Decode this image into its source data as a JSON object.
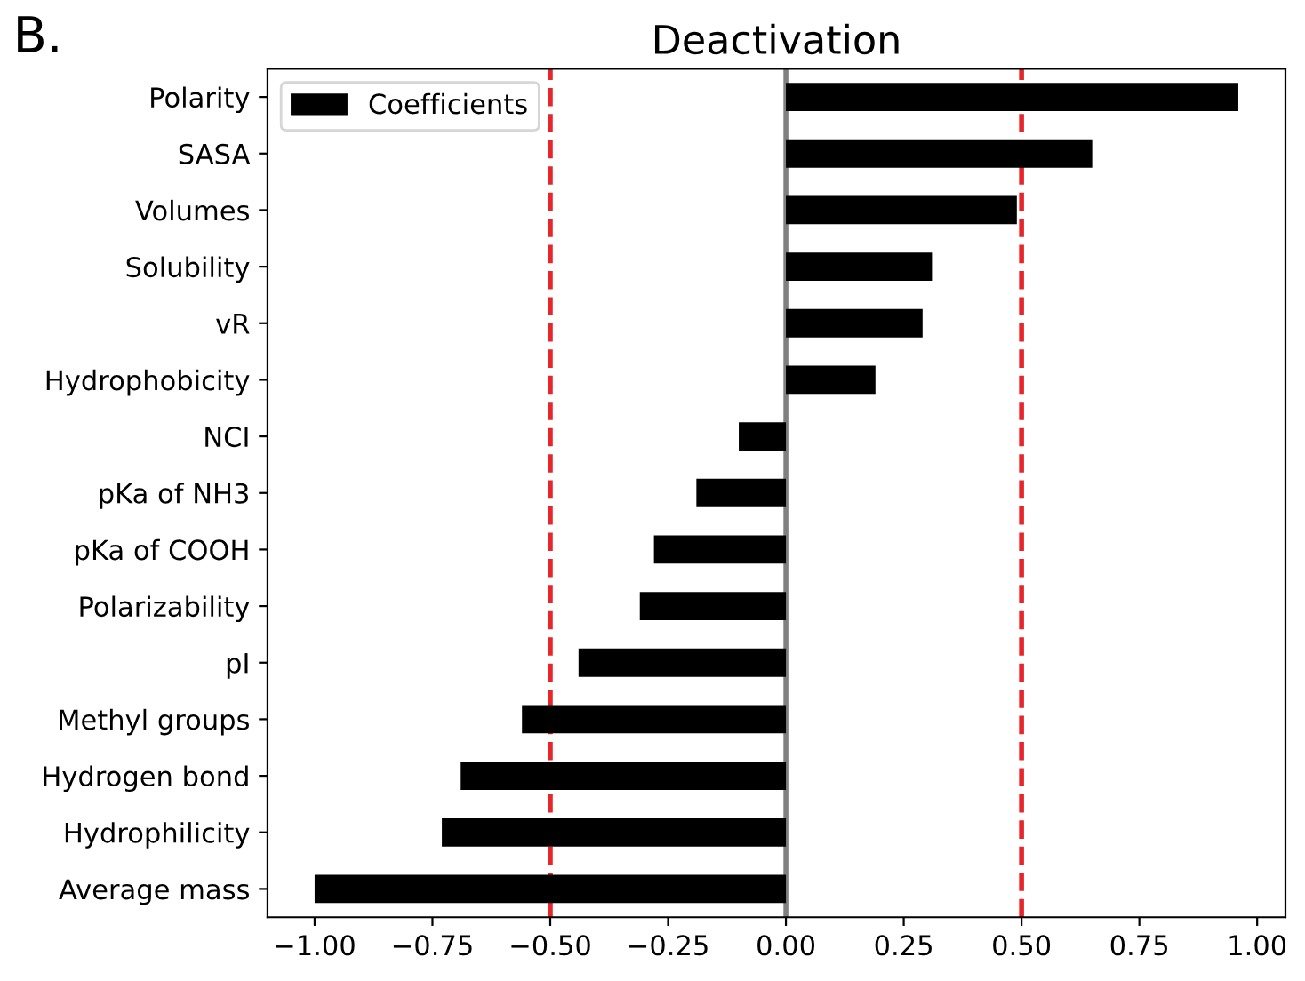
{
  "chart_data": {
    "type": "bar",
    "orientation": "horizontal",
    "title": "Deactivation",
    "annotations": [
      "B."
    ],
    "categories": [
      "Polarity",
      "SASA",
      "Volumes",
      "Solubility",
      "vR",
      "Hydrophobicity",
      "NCI",
      "pKa of NH3",
      "pKa of COOH",
      "Polarizability",
      "pI",
      "Methyl groups",
      "Hydrogen bond",
      "Hydrophilicity",
      "Average mass"
    ],
    "series": [
      {
        "name": "Coefficients",
        "color": "#000000",
        "values": [
          0.96,
          0.65,
          0.49,
          0.31,
          0.29,
          0.19,
          -0.1,
          -0.19,
          -0.28,
          -0.31,
          -0.44,
          -0.56,
          -0.69,
          -0.73,
          -1.0
        ]
      }
    ],
    "xlim": [
      -1.1,
      1.06
    ],
    "xticks": [
      {
        "value": -1.0,
        "label": "−1.00"
      },
      {
        "value": -0.75,
        "label": "−0.75"
      },
      {
        "value": -0.5,
        "label": "−0.50"
      },
      {
        "value": -0.25,
        "label": "−0.25"
      },
      {
        "value": 0.0,
        "label": "0.00"
      },
      {
        "value": 0.25,
        "label": "0.25"
      },
      {
        "value": 0.5,
        "label": "0.50"
      },
      {
        "value": 0.75,
        "label": "0.75"
      },
      {
        "value": 1.0,
        "label": "1.00"
      }
    ],
    "ref_lines": [
      {
        "axis": "x",
        "value": 0.0,
        "color": "#808080",
        "line_style": "solid"
      },
      {
        "axis": "x",
        "value": -0.5,
        "color": "#e8252a",
        "line_style": "dashed"
      },
      {
        "axis": "x",
        "value": 0.5,
        "color": "#e8252a",
        "line_style": "dashed"
      }
    ],
    "legend": "top left",
    "grid": false
  }
}
